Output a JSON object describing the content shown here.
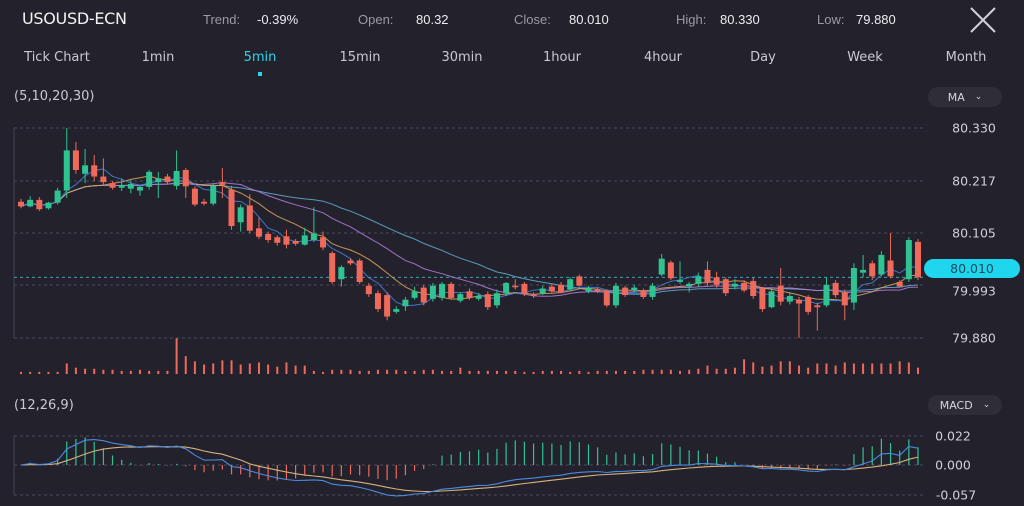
{
  "header": {
    "symbol": "USOUSD-ECN",
    "trend_label": "Trend:",
    "trend_value": "-0.39%",
    "open_label": "Open:",
    "open_value": "80.32",
    "close_label": "Close:",
    "close_value": "80.010",
    "high_label": "High:",
    "high_value": "80.330",
    "low_label": "Low:",
    "low_value": "79.880",
    "close_icon": "x-icon"
  },
  "timeframes": {
    "items": [
      "Tick Chart",
      "1min",
      "5min",
      "15min",
      "30min",
      "1hour",
      "4hour",
      "Day",
      "Week",
      "Month"
    ],
    "active": "5min"
  },
  "main_indicator": {
    "params": "(5,10,20,30)",
    "selector": "MA",
    "periods": [
      5,
      10,
      20,
      30
    ]
  },
  "sub_indicator": {
    "params": "(12,26,9)",
    "selector": "MACD"
  },
  "colors": {
    "background": "#23222c",
    "accent": "#2ed3e8",
    "up": "#2fc391",
    "down": "#ef6a5a",
    "ma5": "#3f7fdc",
    "ma10": "#d8a35c",
    "ma20": "#b07ad8",
    "ma30": "#5fa9cc",
    "dif": "#4a8ae0",
    "dea": "#d6b27c"
  },
  "chart_data": [
    {
      "type": "candlestick",
      "price_axis_ticks": [
        "80.330",
        "80.217",
        "80.105",
        "79.993",
        "79.880"
      ],
      "ylim": [
        79.88,
        80.33
      ],
      "current_price": "80.010",
      "grid": true,
      "ohlc": [
        [
          80.172,
          80.178,
          80.158,
          80.162
        ],
        [
          80.162,
          80.184,
          80.16,
          80.176
        ],
        [
          80.176,
          80.182,
          80.152,
          80.156
        ],
        [
          80.158,
          80.172,
          80.155,
          80.17
        ],
        [
          80.17,
          80.202,
          80.166,
          80.196
        ],
        [
          80.196,
          80.33,
          80.18,
          80.282
        ],
        [
          80.282,
          80.3,
          80.232,
          80.24
        ],
        [
          80.232,
          80.285,
          80.212,
          80.25
        ],
        [
          80.25,
          80.272,
          80.216,
          80.226
        ],
        [
          80.226,
          80.265,
          80.206,
          80.214
        ],
        [
          80.212,
          80.216,
          80.198,
          80.202
        ],
        [
          80.202,
          80.222,
          80.195,
          80.208
        ],
        [
          80.2,
          80.218,
          80.19,
          80.21
        ],
        [
          80.196,
          80.206,
          80.185,
          80.204
        ],
        [
          80.204,
          80.24,
          80.198,
          80.236
        ],
        [
          80.214,
          80.236,
          80.18,
          80.222
        ],
        [
          80.226,
          80.232,
          80.21,
          80.214
        ],
        [
          80.206,
          80.282,
          80.198,
          80.238
        ],
        [
          80.24,
          80.244,
          80.18,
          80.205
        ],
        [
          80.2,
          80.205,
          80.162,
          80.166
        ],
        [
          80.172,
          80.178,
          80.164,
          80.168
        ],
        [
          80.168,
          80.212,
          80.164,
          80.206
        ],
        [
          80.214,
          80.244,
          80.18,
          80.208
        ],
        [
          80.198,
          80.206,
          80.112,
          80.12
        ],
        [
          80.128,
          80.166,
          80.108,
          80.16
        ],
        [
          80.164,
          80.188,
          80.104,
          80.11
        ],
        [
          80.115,
          80.138,
          80.092,
          80.097
        ],
        [
          80.103,
          80.108,
          80.084,
          80.09
        ],
        [
          80.096,
          80.1,
          80.078,
          80.084
        ],
        [
          80.098,
          80.112,
          80.072,
          80.08
        ],
        [
          80.088,
          80.092,
          80.078,
          80.082
        ],
        [
          80.08,
          80.116,
          80.078,
          80.1
        ],
        [
          80.09,
          80.16,
          80.086,
          80.104
        ],
        [
          80.096,
          80.108,
          80.068,
          80.074
        ],
        [
          80.062,
          80.066,
          79.996,
          80.0
        ],
        [
          80.006,
          80.036,
          79.99,
          80.032
        ],
        [
          80.046,
          80.05,
          80.036,
          80.04
        ],
        [
          80.046,
          80.05,
          79.996,
          80.0
        ],
        [
          79.992,
          79.998,
          79.968,
          79.974
        ],
        [
          79.976,
          79.982,
          79.936,
          79.942
        ],
        [
          79.972,
          79.978,
          79.918,
          79.926
        ],
        [
          79.936,
          79.948,
          79.932,
          79.942
        ],
        [
          79.948,
          79.968,
          79.938,
          79.962
        ],
        [
          79.966,
          79.99,
          79.962,
          79.98
        ],
        [
          79.988,
          79.994,
          79.95,
          79.956
        ],
        [
          79.964,
          79.998,
          79.958,
          79.992
        ],
        [
          79.966,
          80.0,
          79.96,
          79.996
        ],
        [
          79.996,
          80.0,
          79.962,
          79.966
        ],
        [
          79.96,
          79.978,
          79.956,
          79.974
        ],
        [
          79.98,
          79.986,
          79.962,
          79.966
        ],
        [
          79.964,
          79.976,
          79.96,
          79.97
        ],
        [
          79.974,
          79.98,
          79.94,
          79.946
        ],
        [
          79.95,
          79.984,
          79.944,
          79.976
        ],
        [
          79.976,
          80.0,
          79.97,
          79.998
        ],
        [
          79.992,
          80.006,
          79.984,
          79.99
        ],
        [
          79.996,
          80.0,
          79.97,
          79.976
        ],
        [
          79.974,
          79.978,
          79.966,
          79.972
        ],
        [
          79.976,
          79.992,
          79.972,
          79.986
        ],
        [
          79.99,
          79.996,
          79.976,
          79.98
        ],
        [
          79.994,
          80.0,
          79.976,
          79.978
        ],
        [
          79.984,
          80.01,
          79.98,
          80.006
        ],
        [
          80.012,
          80.016,
          79.99,
          79.992
        ],
        [
          79.98,
          79.992,
          79.976,
          79.986
        ],
        [
          79.984,
          79.988,
          79.976,
          79.98
        ],
        [
          79.98,
          79.984,
          79.946,
          79.95
        ],
        [
          79.95,
          79.998,
          79.944,
          79.992
        ],
        [
          79.988,
          79.992,
          79.968,
          79.972
        ],
        [
          79.982,
          79.994,
          79.978,
          79.988
        ],
        [
          79.982,
          79.986,
          79.964,
          79.968
        ],
        [
          79.968,
          79.998,
          79.962,
          79.992
        ],
        [
          80.016,
          80.06,
          80.012,
          80.05
        ],
        [
          80.042,
          80.046,
          80.004,
          80.008
        ],
        [
          80.0,
          80.044,
          79.996,
          80.004
        ],
        [
          79.99,
          80.0,
          79.978,
          79.996
        ],
        [
          79.996,
          80.02,
          79.99,
          80.012
        ],
        [
          80.026,
          80.044,
          79.992,
          79.998
        ],
        [
          80.01,
          80.022,
          79.988,
          79.994
        ],
        [
          80.006,
          80.01,
          79.97,
          79.976
        ],
        [
          79.99,
          80.006,
          79.984,
          79.996
        ],
        [
          79.998,
          80.004,
          79.978,
          79.982
        ],
        [
          80.002,
          80.01,
          79.964,
          79.97
        ],
        [
          79.986,
          79.99,
          79.936,
          79.942
        ],
        [
          79.946,
          79.986,
          79.944,
          79.98
        ],
        [
          79.992,
          80.03,
          79.95,
          79.958
        ],
        [
          79.958,
          79.978,
          79.952,
          79.97
        ],
        [
          79.962,
          79.968,
          79.88,
          79.954
        ],
        [
          79.968,
          79.972,
          79.93,
          79.936
        ],
        [
          79.95,
          79.956,
          79.896,
          79.946
        ],
        [
          79.95,
          80.01,
          79.946,
          79.994
        ],
        [
          79.998,
          80.004,
          79.966,
          79.972
        ],
        [
          79.978,
          79.984,
          79.918,
          79.95
        ],
        [
          79.956,
          80.04,
          79.94,
          80.03
        ],
        [
          80.02,
          80.058,
          80.01,
          80.026
        ],
        [
          80.04,
          80.046,
          80.004,
          80.012
        ],
        [
          80.016,
          80.066,
          80.012,
          80.058
        ],
        [
          80.046,
          80.105,
          80.008,
          80.012
        ],
        [
          80.0,
          80.004,
          79.988,
          79.99
        ],
        [
          80.006,
          80.096,
          80.0,
          80.09
        ],
        [
          80.086,
          80.092,
          80.004,
          80.01
        ]
      ],
      "volume": [
        2,
        2,
        2,
        2,
        2,
        10,
        6,
        5,
        5,
        4,
        4,
        3,
        3,
        4,
        3,
        3,
        3,
        34,
        17,
        12,
        9,
        10,
        13,
        13,
        9,
        10,
        11,
        9,
        7,
        11,
        8,
        8,
        3,
        2,
        4,
        4,
        4,
        3,
        3,
        4,
        4,
        4,
        3,
        3,
        4,
        4,
        3,
        3,
        6,
        3,
        3,
        3,
        3,
        3,
        3,
        2,
        2,
        3,
        3,
        3,
        2,
        3,
        2,
        3,
        3,
        3,
        3,
        3,
        4,
        4,
        4,
        4,
        3,
        4,
        5,
        8,
        5,
        5,
        6,
        14,
        11,
        7,
        8,
        12,
        12,
        8,
        6,
        10,
        10,
        8,
        11,
        10,
        10,
        10,
        10,
        10,
        12,
        11,
        6
      ]
    },
    {
      "type": "macd",
      "axis_ticks": [
        "0.022",
        "0.000",
        "-0.057"
      ],
      "ylim": [
        -0.057,
        0.022
      ]
    }
  ]
}
